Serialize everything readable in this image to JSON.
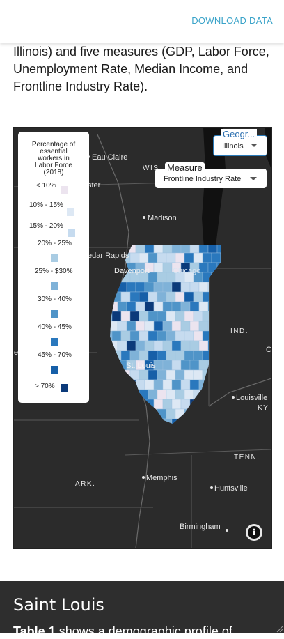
{
  "header": {
    "download_label": "DOWNLOAD DATA"
  },
  "intro": {
    "text": "Illinois) and five measures (GDP, Labor Force,\nUnemployment Rate, Median Income, and\nFrontline Industry Rate)."
  },
  "map": {
    "legend": {
      "title_lines": [
        "Percentage of",
        "essential",
        "workers in",
        "Labor Force",
        "(2018)"
      ],
      "items": [
        {
          "label": "< 10%",
          "color": "#ece4ef"
        },
        {
          "label": "10% - 15%",
          "color": "#dde8f4"
        },
        {
          "label": "15% - 20%",
          "color": "#c6dbef"
        },
        {
          "label": "20% - 25%",
          "color": "#a9cce3"
        },
        {
          "label": "25% - $30%",
          "color": "#7fb2d8"
        },
        {
          "label": "30% - 40%",
          "color": "#4f94c8"
        },
        {
          "label": "40% - 45%",
          "color": "#2a78bd"
        },
        {
          "label": "45% - 70%",
          "color": "#165fa8"
        },
        {
          "label": "> 70%",
          "color": "#0b3a7a"
        }
      ]
    },
    "measure_control": {
      "title": "Measure",
      "value": "Frontline Industry Rate"
    },
    "geography_control": {
      "title": "Geogr...",
      "value": "Illinois"
    },
    "labels": {
      "eau_claire": "Eau Claire",
      "wis": "WIS",
      "ster": "ster",
      "madison": "Madison",
      "cedar_rapids": "edar Rapids",
      "davenport": "Davenport",
      "chicago": "Chicago",
      "ind": "IND.",
      "st_louis": "St. Louis",
      "louisville": "Louisville",
      "ky": "KY",
      "tenn": "TENN.",
      "ark": "ARK.",
      "memphis": "Memphis",
      "huntsville": "Huntsville",
      "birmingham": "Birmingham",
      "edge_e": "e",
      "edge_c": "C"
    },
    "info_icon": "info-icon"
  },
  "section": {
    "title": "Saint Louis",
    "body_bold": "Table 1",
    "body_rest": " shows a demographic profile of"
  },
  "colors": {
    "accent": "#3aa3c9",
    "map_background": "#2b2b2b",
    "lake": "#111111",
    "dark_section": "#2e2e2e"
  }
}
